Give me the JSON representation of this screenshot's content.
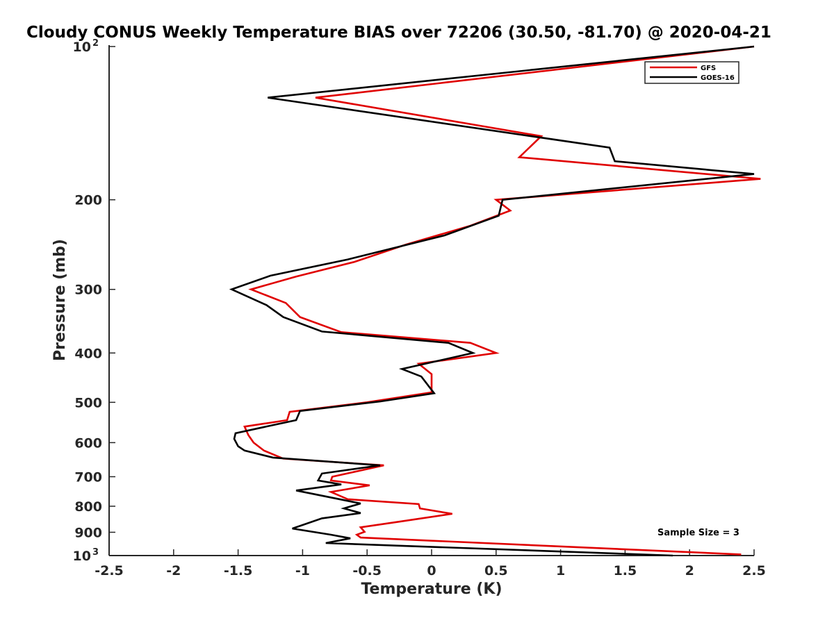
{
  "chart_data": {
    "type": "line",
    "title": "Cloudy CONUS Weekly Temperature BIAS over 72206 (30.50, -81.70) @ 2020-04-21",
    "xlabel": "Temperature (K)",
    "ylabel": "Pressure (mb)",
    "xlim": [
      -2.5,
      2.5
    ],
    "ylim": [
      100,
      1000
    ],
    "y_scale": "log",
    "y_reversed": true,
    "x_ticks": [
      -2.5,
      -2,
      -1.5,
      -1,
      -0.5,
      0,
      0.5,
      1,
      1.5,
      2,
      2.5
    ],
    "x_tick_labels": [
      "-2.5",
      "-2",
      "-1.5",
      "-1",
      "-0.5",
      "0",
      "0.5",
      "1",
      "1.5",
      "2",
      "2.5"
    ],
    "y_ticks": [
      100,
      200,
      300,
      400,
      500,
      600,
      700,
      800,
      900,
      1000
    ],
    "y_tick_labels": [
      {
        "value": 100,
        "base": "10",
        "exp": "2"
      },
      {
        "value": 200,
        "base": "200",
        "exp": ""
      },
      {
        "value": 300,
        "base": "300",
        "exp": ""
      },
      {
        "value": 400,
        "base": "400",
        "exp": ""
      },
      {
        "value": 500,
        "base": "500",
        "exp": ""
      },
      {
        "value": 600,
        "base": "600",
        "exp": ""
      },
      {
        "value": 700,
        "base": "700",
        "exp": ""
      },
      {
        "value": 800,
        "base": "800",
        "exp": ""
      },
      {
        "value": 900,
        "base": "900",
        "exp": ""
      },
      {
        "value": 1000,
        "base": "10",
        "exp": "3"
      }
    ],
    "legend_position": "top-right",
    "annotation": "Sample Size = 3",
    "series": [
      {
        "name": "GFS",
        "color": "#e00000",
        "points": [
          [
            2.5,
            100
          ],
          [
            -0.9,
            126
          ],
          [
            0.85,
            150
          ],
          [
            0.68,
            165
          ],
          [
            2.55,
            182
          ],
          [
            0.5,
            200
          ],
          [
            0.61,
            210
          ],
          [
            0.3,
            225
          ],
          [
            -0.2,
            245
          ],
          [
            -0.6,
            265
          ],
          [
            -1.05,
            283
          ],
          [
            -1.4,
            300
          ],
          [
            -1.13,
            319
          ],
          [
            -1.02,
            340
          ],
          [
            -0.7,
            364
          ],
          [
            0.3,
            382
          ],
          [
            0.5,
            400
          ],
          [
            -0.1,
            420
          ],
          [
            0.0,
            440
          ],
          [
            0.0,
            478
          ],
          [
            -0.5,
            500
          ],
          [
            -1.1,
            522
          ],
          [
            -1.12,
            542
          ],
          [
            -1.45,
            558
          ],
          [
            -1.42,
            580
          ],
          [
            -1.38,
            600
          ],
          [
            -1.3,
            622
          ],
          [
            -1.15,
            645
          ],
          [
            -0.37,
            665
          ],
          [
            -0.77,
            700
          ],
          [
            -0.78,
            712
          ],
          [
            -0.48,
            728
          ],
          [
            -0.78,
            750
          ],
          [
            -0.65,
            775
          ],
          [
            -0.1,
            792
          ],
          [
            -0.09,
            808
          ],
          [
            0.16,
            828
          ],
          [
            -0.25,
            858
          ],
          [
            -0.55,
            880
          ],
          [
            -0.52,
            898
          ],
          [
            -0.58,
            910
          ],
          [
            -0.55,
            922
          ],
          [
            2.4,
            995
          ]
        ]
      },
      {
        "name": "GOES-16",
        "color": "#000000",
        "points": [
          [
            2.5,
            100
          ],
          [
            -1.27,
            126
          ],
          [
            1.38,
            158
          ],
          [
            1.42,
            168
          ],
          [
            2.5,
            178
          ],
          [
            0.55,
            200
          ],
          [
            0.52,
            215
          ],
          [
            0.1,
            235
          ],
          [
            -0.65,
            262
          ],
          [
            -1.25,
            282
          ],
          [
            -1.55,
            300
          ],
          [
            -1.28,
            322
          ],
          [
            -1.15,
            340
          ],
          [
            -0.85,
            363
          ],
          [
            0.13,
            382
          ],
          [
            0.32,
            400
          ],
          [
            -0.23,
            430
          ],
          [
            -0.08,
            445
          ],
          [
            0.02,
            480
          ],
          [
            -0.4,
            498
          ],
          [
            -1.02,
            520
          ],
          [
            -1.05,
            542
          ],
          [
            -1.52,
            575
          ],
          [
            -1.53,
            590
          ],
          [
            -1.5,
            610
          ],
          [
            -1.45,
            622
          ],
          [
            -1.23,
            642
          ],
          [
            -0.4,
            665
          ],
          [
            -0.85,
            690
          ],
          [
            -0.88,
            712
          ],
          [
            -0.7,
            725
          ],
          [
            -1.05,
            745
          ],
          [
            -0.55,
            790
          ],
          [
            -0.68,
            808
          ],
          [
            -0.55,
            825
          ],
          [
            -0.85,
            845
          ],
          [
            -1.08,
            885
          ],
          [
            -0.78,
            910
          ],
          [
            -0.63,
            925
          ],
          [
            -0.82,
            945
          ],
          [
            1.87,
            1000
          ]
        ]
      }
    ]
  }
}
